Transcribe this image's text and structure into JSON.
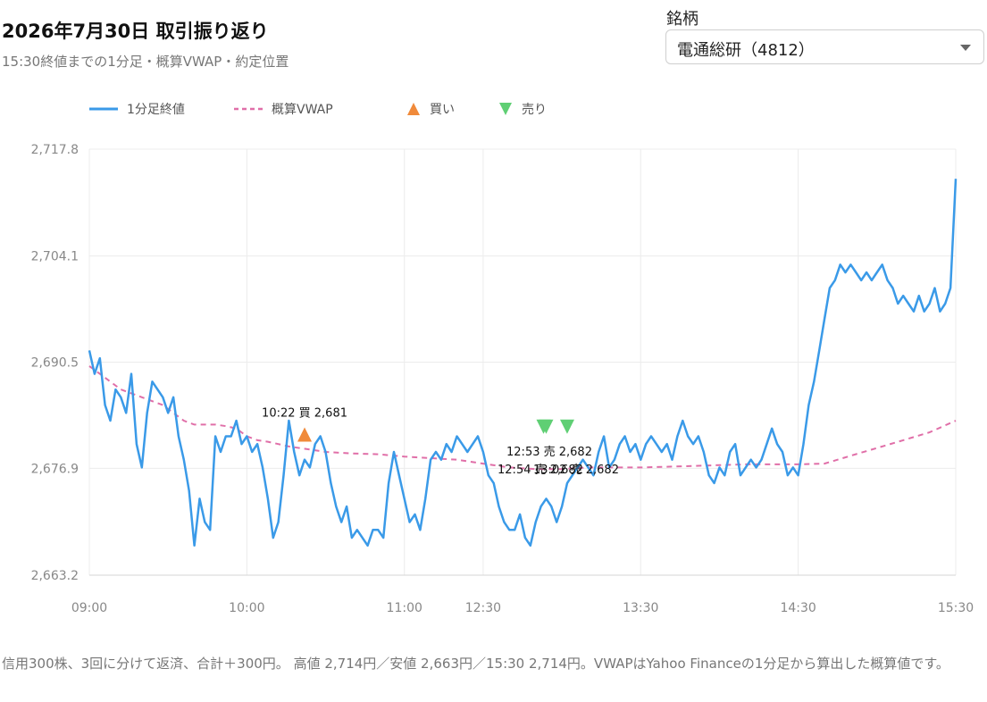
{
  "header": {
    "title": "2026年7月30日 取引振り返り",
    "subtitle": "15:30終値までの1分足・概算VWAP・約定位置"
  },
  "symbol_select": {
    "label": "銘柄",
    "value": "電通総研（4812）"
  },
  "legend": {
    "close": "1分足終値",
    "vwap": "概算VWAP",
    "buy": "買い",
    "sell": "売り"
  },
  "colors": {
    "close": "#3a9ae8",
    "vwap": "#e06fa8",
    "buy": "#f08a3a",
    "sell": "#5fcf74",
    "grid": "#ececec",
    "axis_text": "#888888"
  },
  "footnote": "信用300株、3回に分けて返済、合計＋300円。 高値 2,714円／安値 2,663円／15:30 2,714円。VWAPはYahoo Financeの1分足から算出した概算値です。",
  "chart_data": {
    "type": "line",
    "x_ticks": [
      "09:00",
      "10:00",
      "11:00",
      "12:30",
      "13:30",
      "14:30",
      "15:30"
    ],
    "y_ticks": [
      "2,663.2",
      "2,676.9",
      "2,690.5",
      "2,704.1",
      "2,717.8"
    ],
    "ylim": [
      2663.2,
      2717.8
    ],
    "grid": true,
    "legend_position": "top-left",
    "note": "Sessions: 09:00-11:30 and 12:30-15:30 plotted contiguously; 11:30 and 12:30 share one position.",
    "close_series": {
      "name": "1分足終値",
      "points": [
        [
          "09:00",
          2692
        ],
        [
          "09:02",
          2689
        ],
        [
          "09:04",
          2691
        ],
        [
          "09:06",
          2685
        ],
        [
          "09:08",
          2683
        ],
        [
          "09:10",
          2687
        ],
        [
          "09:12",
          2686
        ],
        [
          "09:14",
          2684
        ],
        [
          "09:16",
          2689
        ],
        [
          "09:18",
          2680
        ],
        [
          "09:20",
          2677
        ],
        [
          "09:22",
          2684
        ],
        [
          "09:24",
          2688
        ],
        [
          "09:26",
          2687
        ],
        [
          "09:28",
          2686
        ],
        [
          "09:30",
          2684
        ],
        [
          "09:32",
          2686
        ],
        [
          "09:34",
          2681
        ],
        [
          "09:36",
          2678
        ],
        [
          "09:38",
          2674
        ],
        [
          "09:40",
          2667
        ],
        [
          "09:42",
          2673
        ],
        [
          "09:44",
          2670
        ],
        [
          "09:46",
          2669
        ],
        [
          "09:48",
          2681
        ],
        [
          "09:50",
          2679
        ],
        [
          "09:52",
          2681
        ],
        [
          "09:54",
          2681
        ],
        [
          "09:56",
          2683
        ],
        [
          "09:58",
          2680
        ],
        [
          "10:00",
          2681
        ],
        [
          "10:02",
          2679
        ],
        [
          "10:04",
          2680
        ],
        [
          "10:06",
          2677
        ],
        [
          "10:08",
          2673
        ],
        [
          "10:10",
          2668
        ],
        [
          "10:12",
          2670
        ],
        [
          "10:14",
          2676
        ],
        [
          "10:16",
          2683
        ],
        [
          "10:18",
          2679
        ],
        [
          "10:20",
          2676
        ],
        [
          "10:22",
          2678
        ],
        [
          "10:24",
          2677
        ],
        [
          "10:26",
          2680
        ],
        [
          "10:28",
          2681
        ],
        [
          "10:30",
          2679
        ],
        [
          "10:32",
          2675
        ],
        [
          "10:34",
          2672
        ],
        [
          "10:36",
          2670
        ],
        [
          "10:38",
          2672
        ],
        [
          "10:40",
          2668
        ],
        [
          "10:42",
          2669
        ],
        [
          "10:44",
          2668
        ],
        [
          "10:46",
          2667
        ],
        [
          "10:48",
          2669
        ],
        [
          "10:50",
          2669
        ],
        [
          "10:52",
          2668
        ],
        [
          "10:54",
          2675
        ],
        [
          "10:56",
          2679
        ],
        [
          "10:58",
          2676
        ],
        [
          "11:00",
          2673
        ],
        [
          "11:02",
          2670
        ],
        [
          "11:04",
          2671
        ],
        [
          "11:06",
          2669
        ],
        [
          "11:08",
          2673
        ],
        [
          "11:10",
          2678
        ],
        [
          "11:12",
          2679
        ],
        [
          "11:14",
          2678
        ],
        [
          "11:16",
          2680
        ],
        [
          "11:18",
          2679
        ],
        [
          "11:20",
          2681
        ],
        [
          "11:22",
          2680
        ],
        [
          "11:24",
          2679
        ],
        [
          "11:26",
          2680
        ],
        [
          "11:28",
          2681
        ],
        [
          "11:30",
          2679
        ],
        [
          "12:32",
          2676
        ],
        [
          "12:34",
          2675
        ],
        [
          "12:36",
          2672
        ],
        [
          "12:38",
          2670
        ],
        [
          "12:40",
          2669
        ],
        [
          "12:42",
          2669
        ],
        [
          "12:44",
          2671
        ],
        [
          "12:46",
          2668
        ],
        [
          "12:48",
          2667
        ],
        [
          "12:50",
          2670
        ],
        [
          "12:52",
          2672
        ],
        [
          "12:54",
          2673
        ],
        [
          "12:56",
          2672
        ],
        [
          "12:58",
          2670
        ],
        [
          "13:00",
          2672
        ],
        [
          "13:02",
          2675
        ],
        [
          "13:04",
          2676
        ],
        [
          "13:06",
          2677
        ],
        [
          "13:08",
          2678
        ],
        [
          "13:10",
          2677
        ],
        [
          "13:12",
          2676
        ],
        [
          "13:14",
          2679
        ],
        [
          "13:16",
          2681
        ],
        [
          "13:18",
          2677
        ],
        [
          "13:20",
          2678
        ],
        [
          "13:22",
          2680
        ],
        [
          "13:24",
          2681
        ],
        [
          "13:26",
          2679
        ],
        [
          "13:28",
          2680
        ],
        [
          "13:30",
          2678
        ],
        [
          "13:32",
          2680
        ],
        [
          "13:34",
          2681
        ],
        [
          "13:36",
          2680
        ],
        [
          "13:38",
          2679
        ],
        [
          "13:40",
          2680
        ],
        [
          "13:42",
          2678
        ],
        [
          "13:44",
          2681
        ],
        [
          "13:46",
          2683
        ],
        [
          "13:48",
          2681
        ],
        [
          "13:50",
          2680
        ],
        [
          "13:52",
          2681
        ],
        [
          "13:54",
          2679
        ],
        [
          "13:56",
          2676
        ],
        [
          "13:58",
          2675
        ],
        [
          "14:00",
          2677
        ],
        [
          "14:02",
          2676
        ],
        [
          "14:04",
          2679
        ],
        [
          "14:06",
          2680
        ],
        [
          "14:08",
          2676
        ],
        [
          "14:10",
          2677
        ],
        [
          "14:12",
          2678
        ],
        [
          "14:14",
          2677
        ],
        [
          "14:16",
          2678
        ],
        [
          "14:18",
          2680
        ],
        [
          "14:20",
          2682
        ],
        [
          "14:22",
          2680
        ],
        [
          "14:24",
          2679
        ],
        [
          "14:26",
          2676
        ],
        [
          "14:28",
          2677
        ],
        [
          "14:30",
          2676
        ],
        [
          "14:32",
          2680
        ],
        [
          "14:34",
          2685
        ],
        [
          "14:36",
          2688
        ],
        [
          "14:38",
          2692
        ],
        [
          "14:40",
          2696
        ],
        [
          "14:42",
          2700
        ],
        [
          "14:44",
          2701
        ],
        [
          "14:46",
          2703
        ],
        [
          "14:48",
          2702
        ],
        [
          "14:50",
          2703
        ],
        [
          "14:52",
          2702
        ],
        [
          "14:54",
          2701
        ],
        [
          "14:56",
          2702
        ],
        [
          "14:58",
          2701
        ],
        [
          "15:00",
          2702
        ],
        [
          "15:02",
          2703
        ],
        [
          "15:04",
          2701
        ],
        [
          "15:06",
          2700
        ],
        [
          "15:08",
          2698
        ],
        [
          "15:10",
          2699
        ],
        [
          "15:12",
          2698
        ],
        [
          "15:14",
          2697
        ],
        [
          "15:16",
          2699
        ],
        [
          "15:18",
          2697
        ],
        [
          "15:20",
          2698
        ],
        [
          "15:22",
          2700
        ],
        [
          "15:24",
          2697
        ],
        [
          "15:26",
          2698
        ],
        [
          "15:28",
          2700
        ],
        [
          "15:30",
          2714
        ]
      ]
    },
    "vwap_series": {
      "name": "概算VWAP",
      "points": [
        [
          "09:00",
          2690
        ],
        [
          "09:04",
          2689
        ],
        [
          "09:08",
          2688
        ],
        [
          "09:12",
          2687
        ],
        [
          "09:16",
          2686.5
        ],
        [
          "09:20",
          2686
        ],
        [
          "09:24",
          2685.5
        ],
        [
          "09:28",
          2685
        ],
        [
          "09:32",
          2684
        ],
        [
          "09:36",
          2683
        ],
        [
          "09:40",
          2682.5
        ],
        [
          "09:44",
          2682.5
        ],
        [
          "09:48",
          2682.5
        ],
        [
          "09:52",
          2682.3
        ],
        [
          "09:56",
          2682
        ],
        [
          "10:00",
          2681
        ],
        [
          "10:04",
          2680.5
        ],
        [
          "10:08",
          2680.3
        ],
        [
          "10:12",
          2680
        ],
        [
          "10:16",
          2679.7
        ],
        [
          "10:20",
          2679.5
        ],
        [
          "10:24",
          2679.3
        ],
        [
          "10:30",
          2679
        ],
        [
          "10:40",
          2678.8
        ],
        [
          "10:50",
          2678.7
        ],
        [
          "11:00",
          2678.4
        ],
        [
          "11:10",
          2678.2
        ],
        [
          "11:20",
          2678
        ],
        [
          "11:30",
          2677.5
        ],
        [
          "12:40",
          2677
        ],
        [
          "12:50",
          2676.8
        ],
        [
          "13:00",
          2676.8
        ],
        [
          "13:10",
          2677
        ],
        [
          "13:20",
          2677
        ],
        [
          "13:30",
          2677
        ],
        [
          "13:40",
          2677.1
        ],
        [
          "13:50",
          2677.2
        ],
        [
          "14:00",
          2677.3
        ],
        [
          "14:10",
          2677.4
        ],
        [
          "14:20",
          2677.4
        ],
        [
          "14:30",
          2677.4
        ],
        [
          "14:40",
          2677.5
        ],
        [
          "14:50",
          2678.5
        ],
        [
          "15:00",
          2679.5
        ],
        [
          "15:10",
          2680.5
        ],
        [
          "15:20",
          2681.5
        ],
        [
          "15:30",
          2683
        ]
      ]
    },
    "trades": [
      {
        "type": "buy",
        "time": "10:22",
        "price": 2681,
        "label": "10:22 買 2,681"
      },
      {
        "type": "sell",
        "time": "12:53",
        "price": 2682,
        "label": "12:53 売 2,682"
      },
      {
        "type": "sell",
        "time": "12:54",
        "price": 2682,
        "label": "12:54 売 2,682"
      },
      {
        "type": "sell",
        "time": "13:02",
        "price": 2682,
        "label": "13:02 売 2,682"
      }
    ]
  }
}
